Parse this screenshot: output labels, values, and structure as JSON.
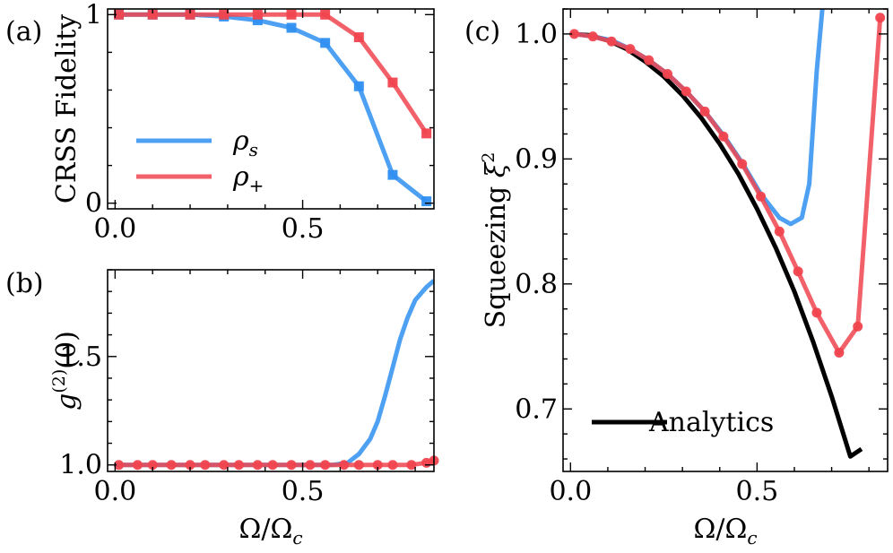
{
  "colors": {
    "blue": "#2f8ff0",
    "red": "#f0454f",
    "black": "#000000"
  },
  "chart_data": [
    {
      "id": "a",
      "type": "line",
      "panel_label": "(a)",
      "ylabel": "CRSS Fidelity",
      "xlabel": "",
      "xlim": [
        -0.02,
        0.85
      ],
      "ylim": [
        -0.03,
        1.03
      ],
      "xticks": [
        0.0,
        0.5
      ],
      "xtick_labels": [
        "0.0",
        "0.5"
      ],
      "yticks": [
        0,
        1
      ],
      "ytick_labels": [
        "0",
        "1"
      ],
      "legend": {
        "position": "center-left",
        "entries": [
          {
            "label": "ρ",
            "sub": "s",
            "color": "blue"
          },
          {
            "label": "ρ",
            "sub": "+",
            "color": "red"
          }
        ]
      },
      "series": [
        {
          "name": "rho_s",
          "color": "blue",
          "marker": "square",
          "x": [
            0.01,
            0.1,
            0.2,
            0.29,
            0.38,
            0.47,
            0.56,
            0.65,
            0.74,
            0.83
          ],
          "y": [
            1.0,
            1.0,
            1.0,
            0.99,
            0.97,
            0.93,
            0.85,
            0.62,
            0.15,
            0.01
          ]
        },
        {
          "name": "rho_plus",
          "color": "red",
          "marker": "square",
          "x": [
            0.01,
            0.1,
            0.2,
            0.29,
            0.38,
            0.47,
            0.56,
            0.65,
            0.74,
            0.83
          ],
          "y": [
            1.0,
            1.0,
            1.0,
            1.0,
            1.0,
            1.0,
            1.0,
            0.88,
            0.64,
            0.37
          ]
        }
      ]
    },
    {
      "id": "b",
      "type": "line",
      "panel_label": "(b)",
      "ylabel": "g(2)(0)",
      "xlabel": "Ω/Ωc",
      "xlim": [
        -0.02,
        0.85
      ],
      "ylim": [
        0.97,
        1.9
      ],
      "xticks": [
        0.0,
        0.5
      ],
      "xtick_labels": [
        "0.0",
        "0.5"
      ],
      "yticks": [
        1.0,
        1.5
      ],
      "ytick_labels": [
        "1.0",
        "1.5"
      ],
      "series": [
        {
          "name": "rho_s",
          "color": "blue",
          "marker": "none",
          "x": [
            0.0,
            0.1,
            0.2,
            0.3,
            0.4,
            0.5,
            0.58,
            0.62,
            0.65,
            0.68,
            0.7,
            0.72,
            0.74,
            0.76,
            0.78,
            0.8,
            0.83,
            0.85
          ],
          "y": [
            1.0,
            1.0,
            1.0,
            1.0,
            1.0,
            1.0,
            1.0,
            1.01,
            1.05,
            1.12,
            1.2,
            1.32,
            1.45,
            1.58,
            1.68,
            1.76,
            1.82,
            1.85
          ]
        },
        {
          "name": "rho_plus",
          "color": "red",
          "marker": "circle",
          "x": [
            0.01,
            0.06,
            0.1,
            0.15,
            0.2,
            0.24,
            0.29,
            0.33,
            0.38,
            0.42,
            0.47,
            0.52,
            0.56,
            0.61,
            0.65,
            0.7,
            0.74,
            0.79,
            0.83,
            0.85
          ],
          "y": [
            1.0,
            1.0,
            1.0,
            1.0,
            1.0,
            1.0,
            1.0,
            1.0,
            1.0,
            1.0,
            1.0,
            1.0,
            1.0,
            1.0,
            1.0,
            1.0,
            1.0,
            1.0,
            1.01,
            1.02
          ]
        }
      ]
    },
    {
      "id": "c",
      "type": "line",
      "panel_label": "(c)",
      "ylabel": "Squeezing ξ²",
      "xlabel": "Ω/Ωc",
      "xlim": [
        -0.02,
        0.85
      ],
      "ylim": [
        0.65,
        1.02
      ],
      "xticks": [
        0.0,
        0.5
      ],
      "xtick_labels": [
        "0.0",
        "0.5"
      ],
      "yticks": [
        0.7,
        0.8,
        0.9,
        1.0
      ],
      "ytick_labels": [
        "0.7",
        "0.8",
        "0.9",
        "1.0"
      ],
      "legend": {
        "position": "bottom-left",
        "entries": [
          {
            "label": "Analytics",
            "color": "black"
          }
        ]
      },
      "series": [
        {
          "name": "analytics",
          "color": "black",
          "marker": "none",
          "x": [
            0.0,
            0.05,
            0.1,
            0.15,
            0.2,
            0.25,
            0.3,
            0.35,
            0.4,
            0.45,
            0.5,
            0.55,
            0.6,
            0.65,
            0.7,
            0.75,
            0.78
          ],
          "y": [
            1.0,
            0.999,
            0.995,
            0.988,
            0.978,
            0.966,
            0.951,
            0.933,
            0.912,
            0.888,
            0.86,
            0.829,
            0.794,
            0.754,
            0.71,
            0.662,
            0.668
          ]
        },
        {
          "name": "rho_s",
          "color": "blue",
          "marker": "none",
          "x": [
            0.01,
            0.06,
            0.11,
            0.16,
            0.21,
            0.26,
            0.31,
            0.36,
            0.41,
            0.46,
            0.51,
            0.56,
            0.59,
            0.62,
            0.64,
            0.66,
            0.675
          ],
          "y": [
            1.0,
            0.998,
            0.995,
            0.988,
            0.979,
            0.968,
            0.954,
            0.938,
            0.919,
            0.897,
            0.872,
            0.853,
            0.848,
            0.853,
            0.88,
            0.97,
            1.02
          ]
        },
        {
          "name": "rho_plus",
          "color": "red",
          "marker": "circle",
          "x": [
            0.01,
            0.06,
            0.11,
            0.16,
            0.21,
            0.26,
            0.31,
            0.36,
            0.41,
            0.46,
            0.51,
            0.56,
            0.61,
            0.66,
            0.72,
            0.77,
            0.83
          ],
          "y": [
            1.0,
            0.998,
            0.994,
            0.988,
            0.979,
            0.968,
            0.954,
            0.938,
            0.918,
            0.896,
            0.87,
            0.842,
            0.81,
            0.777,
            0.745,
            0.766,
            1.013
          ]
        }
      ]
    }
  ]
}
